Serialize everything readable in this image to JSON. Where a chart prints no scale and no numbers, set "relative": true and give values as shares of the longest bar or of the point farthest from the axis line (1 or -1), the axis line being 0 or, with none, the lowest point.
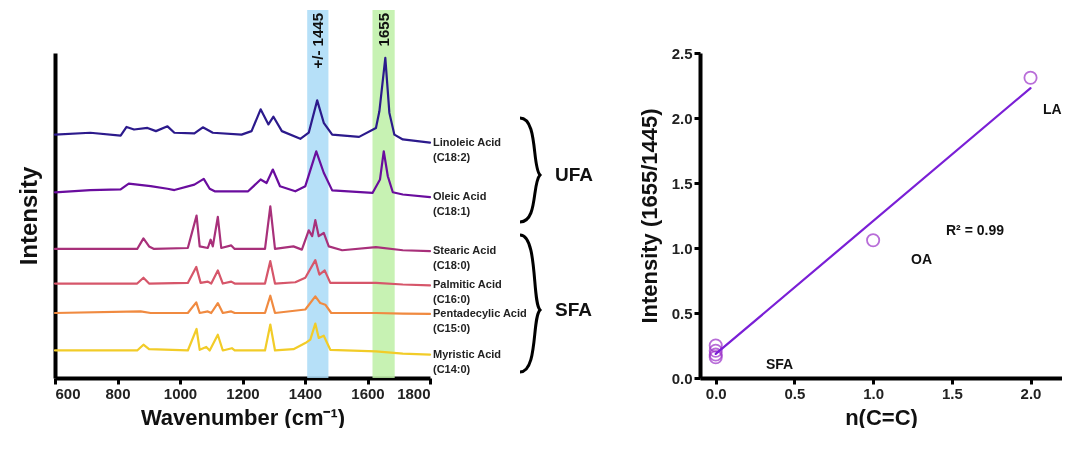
{
  "chart_data": [
    {
      "type": "line",
      "relative": true,
      "xlabel": "Wavenumber (cm⁻¹)",
      "ylabel": "Intensity",
      "xlim": [
        600,
        1800
      ],
      "xticks": [
        600,
        800,
        1000,
        1200,
        1400,
        1600,
        1800
      ],
      "series": [
        {
          "name": "Linoleic Acid (C18:2)",
          "color": "#2c1a8c",
          "x": [
            600,
            713,
            810,
            829,
            853,
            896,
            923,
            960,
            982,
            1046,
            1073,
            1105,
            1197,
            1229,
            1258,
            1283,
            1299,
            1326,
            1385,
            1412,
            1439,
            1460,
            1487,
            1573,
            1627,
            1638,
            1657,
            1670,
            1686,
            1713,
            1800
          ],
          "values": [
            0.76,
            0.766,
            0.757,
            0.784,
            0.776,
            0.781,
            0.771,
            0.786,
            0.766,
            0.764,
            0.783,
            0.766,
            0.76,
            0.771,
            0.839,
            0.792,
            0.816,
            0.771,
            0.747,
            0.766,
            0.867,
            0.797,
            0.76,
            0.753,
            0.781,
            0.833,
            1.0,
            0.828,
            0.76,
            0.745,
            0.735
          ]
        },
        {
          "name": "Oleic Acid (C18:1)",
          "color": "#6a0d9e",
          "x": [
            600,
            713,
            810,
            836,
            906,
            960,
            982,
            1046,
            1076,
            1095,
            1111,
            1218,
            1258,
            1277,
            1297,
            1320,
            1369,
            1401,
            1436,
            1460,
            1487,
            1616,
            1640,
            1652,
            1665,
            1681,
            1713,
            1800
          ],
          "values": [
            0.58,
            0.587,
            0.589,
            0.607,
            0.599,
            0.591,
            0.587,
            0.604,
            0.622,
            0.591,
            0.583,
            0.583,
            0.62,
            0.609,
            0.651,
            0.599,
            0.583,
            0.599,
            0.708,
            0.641,
            0.586,
            0.578,
            0.62,
            0.708,
            0.63,
            0.58,
            0.573,
            0.565
          ]
        },
        {
          "name": "Stearic Acid (C18:0)",
          "color": "#a8307a",
          "x": [
            600,
            863,
            883,
            901,
            917,
            1025,
            1053,
            1063,
            1089,
            1098,
            1105,
            1121,
            1132,
            1164,
            1175,
            1272,
            1289,
            1304,
            1363,
            1390,
            1412,
            1423,
            1433,
            1444,
            1460,
            1476,
            1519,
            1627,
            1713,
            1800
          ],
          "values": [
            0.403,
            0.403,
            0.436,
            0.411,
            0.403,
            0.406,
            0.507,
            0.411,
            0.406,
            0.432,
            0.411,
            0.503,
            0.406,
            0.414,
            0.403,
            0.403,
            0.536,
            0.403,
            0.411,
            0.401,
            0.461,
            0.443,
            0.493,
            0.443,
            0.453,
            0.411,
            0.399,
            0.409,
            0.399,
            0.396
          ]
        },
        {
          "name": "Palmitic Acid (C16:0)",
          "color": "#d6566a",
          "x": [
            600,
            863,
            883,
            901,
            1025,
            1052,
            1066,
            1089,
            1100,
            1121,
            1137,
            1164,
            1175,
            1272,
            1289,
            1304,
            1369,
            1401,
            1433,
            1446,
            1463,
            1481,
            1627,
            1713,
            1800
          ],
          "values": [
            0.295,
            0.295,
            0.313,
            0.295,
            0.297,
            0.347,
            0.297,
            0.301,
            0.295,
            0.336,
            0.295,
            0.301,
            0.295,
            0.295,
            0.365,
            0.295,
            0.299,
            0.313,
            0.368,
            0.323,
            0.336,
            0.297,
            0.297,
            0.292,
            0.289
          ]
        },
        {
          "name": "Pentadecylic Acid (C15:0)",
          "color": "#f08a40",
          "x": [
            600,
            874,
            906,
            1025,
            1052,
            1063,
            1089,
            1100,
            1121,
            1137,
            1164,
            1175,
            1272,
            1289,
            1304,
            1401,
            1433,
            1449,
            1465,
            1484,
            1627,
            1713,
            1800
          ],
          "values": [
            0.203,
            0.208,
            0.203,
            0.203,
            0.236,
            0.203,
            0.208,
            0.203,
            0.234,
            0.203,
            0.208,
            0.203,
            0.203,
            0.257,
            0.203,
            0.214,
            0.255,
            0.234,
            0.229,
            0.203,
            0.203,
            0.201,
            0.2
          ]
        },
        {
          "name": "Myristic Acid (C14:0)",
          "color": "#f2cc28",
          "x": [
            600,
            863,
            883,
            901,
            1025,
            1053,
            1063,
            1084,
            1095,
            1121,
            1137,
            1166,
            1175,
            1272,
            1289,
            1304,
            1363,
            1401,
            1417,
            1433,
            1444,
            1460,
            1481,
            1627,
            1713,
            1800
          ],
          "values": [
            0.086,
            0.086,
            0.104,
            0.09,
            0.086,
            0.153,
            0.088,
            0.097,
            0.086,
            0.135,
            0.086,
            0.093,
            0.086,
            0.086,
            0.167,
            0.086,
            0.09,
            0.109,
            0.12,
            0.17,
            0.125,
            0.132,
            0.088,
            0.083,
            0.076,
            0.073
          ]
        }
      ],
      "bands": [
        {
          "axis": "x",
          "from": 1407,
          "to": 1475,
          "label": "+/- 1445",
          "color": "#a9daf7"
        },
        {
          "axis": "x",
          "from": 1616,
          "to": 1687,
          "label": "1655",
          "color": "#bdf0a6"
        }
      ],
      "annotations": [
        "UFA",
        "SFA"
      ]
    },
    {
      "type": "scatter",
      "xlabel": "n(C=C)",
      "ylabel": "Intensity (1655/1445)",
      "xlim": [
        -0.1,
        2.2
      ],
      "ylim": [
        0,
        2.5
      ],
      "xticks": [
        {
          "value": 0,
          "label": "0.0"
        },
        {
          "value": 0.5,
          "label": "0.5"
        },
        {
          "value": 1,
          "label": "1.0"
        },
        {
          "value": 1.5,
          "label": "1.5"
        },
        {
          "value": 2,
          "label": "2.0"
        }
      ],
      "yticks": [
        {
          "value": 0,
          "label": "0.0"
        },
        {
          "value": 0.5,
          "label": "0.5"
        },
        {
          "value": 1,
          "label": "1.0"
        },
        {
          "value": 1.5,
          "label": "1.5"
        },
        {
          "value": 2,
          "label": "2.0"
        },
        {
          "value": 2.5,
          "label": "2.5"
        }
      ],
      "series": [
        {
          "color": "#9b30c8",
          "marker": "circle",
          "x": [
            0,
            0,
            0,
            0,
            1,
            2
          ],
          "values": [
            0.25,
            0.21,
            0.18,
            0.16,
            1.06,
            2.31
          ]
        },
        {
          "type": "line",
          "color": "#7a1fd6",
          "x": [
            0,
            2
          ],
          "values": [
            0.185,
            2.23
          ]
        }
      ],
      "annotations": [
        "LA",
        "OA",
        "SFA",
        "R² = 0.99"
      ]
    }
  ]
}
